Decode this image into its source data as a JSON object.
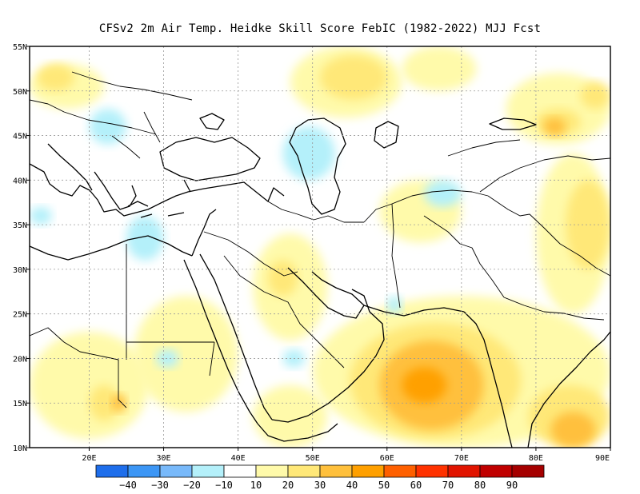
{
  "title": "CFSv2  2m Air Temp. Heidke Skill Score FebIC (1982-2022) MJJ Fcst",
  "map": {
    "lon_range": [
      12,
      90
    ],
    "lat_range": [
      10,
      55
    ],
    "x_ticks": [
      {
        "value": 20,
        "label": "20E"
      },
      {
        "value": 30,
        "label": "30E"
      },
      {
        "value": 40,
        "label": "40E"
      },
      {
        "value": 50,
        "label": "50E"
      },
      {
        "value": 60,
        "label": "60E"
      },
      {
        "value": 70,
        "label": "70E"
      },
      {
        "value": 80,
        "label": "80E"
      },
      {
        "value": 90,
        "label": "90E"
      }
    ],
    "y_ticks": [
      {
        "value": 10,
        "label": "10N"
      },
      {
        "value": 15,
        "label": "15N"
      },
      {
        "value": 20,
        "label": "20N"
      },
      {
        "value": 25,
        "label": "25N"
      },
      {
        "value": 30,
        "label": "30N"
      },
      {
        "value": 35,
        "label": "35N"
      },
      {
        "value": 40,
        "label": "40N"
      },
      {
        "value": 45,
        "label": "45N"
      },
      {
        "value": 50,
        "label": "50N"
      },
      {
        "value": 55,
        "label": "55N"
      }
    ],
    "grid": true,
    "fields": [
      {
        "level": 10,
        "lon": [
          47,
          62
        ],
        "lat": [
          47,
          55
        ],
        "note": "north belt"
      },
      {
        "level": 20,
        "lon": [
          51,
          60
        ],
        "lat": [
          49,
          54
        ]
      },
      {
        "level": 10,
        "lon": [
          12,
          22
        ],
        "lat": [
          48,
          53
        ]
      },
      {
        "level": 20,
        "lon": [
          13,
          18
        ],
        "lat": [
          50,
          53
        ]
      },
      {
        "level": 10,
        "lon": [
          62,
          72
        ],
        "lat": [
          50,
          55
        ]
      },
      {
        "level": 10,
        "lon": [
          76,
          90
        ],
        "lat": [
          44,
          52
        ]
      },
      {
        "level": 20,
        "lon": [
          80,
          86
        ],
        "lat": [
          45,
          48
        ]
      },
      {
        "level": 30,
        "lon": [
          81,
          84
        ],
        "lat": [
          45,
          47
        ]
      },
      {
        "level": 20,
        "lon": [
          86,
          90
        ],
        "lat": [
          48,
          51
        ]
      },
      {
        "level": 10,
        "lon": [
          80,
          90
        ],
        "lat": [
          25,
          43
        ]
      },
      {
        "level": 20,
        "lon": [
          84,
          90
        ],
        "lat": [
          30,
          40
        ]
      },
      {
        "level": 10,
        "lon": [
          59,
          70
        ],
        "lat": [
          33,
          40
        ]
      },
      {
        "level": 10,
        "lon": [
          42,
          52
        ],
        "lat": [
          22,
          34
        ]
      },
      {
        "level": 20,
        "lon": [
          44,
          48
        ],
        "lat": [
          27,
          31
        ]
      },
      {
        "level": 10,
        "lon": [
          26,
          40
        ],
        "lat": [
          14,
          27
        ]
      },
      {
        "level": 10,
        "lon": [
          12,
          28
        ],
        "lat": [
          11,
          23
        ]
      },
      {
        "level": 20,
        "lon": [
          20,
          24
        ],
        "lat": [
          13,
          17
        ]
      },
      {
        "level": 30,
        "lon": [
          23,
          25
        ],
        "lat": [
          14,
          16
        ]
      },
      {
        "level": 10,
        "lon": [
          50,
          90
        ],
        "lat": [
          10,
          27
        ]
      },
      {
        "level": 20,
        "lon": [
          55,
          78
        ],
        "lat": [
          11,
          24
        ]
      },
      {
        "level": 30,
        "lon": [
          59,
          73
        ],
        "lat": [
          12,
          22
        ]
      },
      {
        "level": 40,
        "lon": [
          62,
          68
        ],
        "lat": [
          15,
          19
        ]
      },
      {
        "level": 20,
        "lon": [
          79,
          90
        ],
        "lat": [
          10,
          17
        ]
      },
      {
        "level": 30,
        "lon": [
          82,
          88
        ],
        "lat": [
          10,
          14
        ]
      },
      {
        "level": 10,
        "lon": [
          42,
          52
        ],
        "lat": [
          10,
          17
        ]
      },
      {
        "level": -10,
        "lon": [
          20,
          25
        ],
        "lat": [
          44,
          48
        ]
      },
      {
        "level": -10,
        "lon": [
          25,
          30
        ],
        "lat": [
          31,
          36
        ]
      },
      {
        "level": -10,
        "lon": [
          12,
          15
        ],
        "lat": [
          35,
          37
        ]
      },
      {
        "level": -10,
        "lon": [
          46,
          53
        ],
        "lat": [
          40,
          46
        ]
      },
      {
        "level": -10,
        "lon": [
          65,
          70
        ],
        "lat": [
          37,
          40
        ]
      },
      {
        "level": -10,
        "lon": [
          29,
          32
        ],
        "lat": [
          19,
          21
        ]
      },
      {
        "level": -10,
        "lon": [
          46,
          49
        ],
        "lat": [
          19,
          21
        ]
      },
      {
        "level": -10,
        "lon": [
          60,
          62
        ],
        "lat": [
          25,
          27
        ]
      }
    ],
    "colors": {
      "-40": "#1e6eeb",
      "-30": "#3c96f5",
      "-20": "#78b9fa",
      "-10": "#b4f0fa",
      "10": "#fffaaa",
      "20": "#ffe878",
      "30": "#ffc03c",
      "40": "#ffa000",
      "50": "#ff6000",
      "60": "#ff3200",
      "70": "#e11400",
      "80": "#c00000",
      "90": "#a50000"
    }
  },
  "colorbar": {
    "colors": [
      "#1e6eeb",
      "#3c96f5",
      "#78b9fa",
      "#b4f0fa",
      "#ffffff",
      "#fffaaa",
      "#ffe878",
      "#ffc03c",
      "#ffa000",
      "#ff6000",
      "#ff3200",
      "#e11400",
      "#c00000",
      "#a50000"
    ],
    "labels": [
      "−40",
      "−30",
      "−20",
      "−10",
      "10",
      "20",
      "30",
      "40",
      "50",
      "60",
      "70",
      "80",
      "90"
    ]
  }
}
